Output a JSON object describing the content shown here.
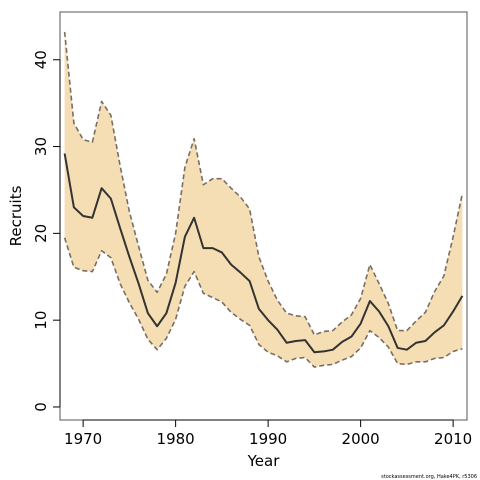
{
  "chart_data": {
    "type": "line",
    "xlabel": "Year",
    "ylabel": "Recruits",
    "xlim": [
      1967.5,
      2011.5
    ],
    "ylim": [
      -1.5,
      45.5
    ],
    "x_ticks": [
      1970,
      1980,
      1990,
      2000,
      2010
    ],
    "y_ticks": [
      0,
      10,
      20,
      30,
      40
    ],
    "grid": false,
    "legend": "none",
    "colors": {
      "band": "#F5DEB3",
      "bound_line": "#7a6e64",
      "median_line": "#333333",
      "frame": "#555555"
    },
    "x": [
      1968,
      1969,
      1970,
      1971,
      1972,
      1973,
      1974,
      1975,
      1976,
      1977,
      1978,
      1979,
      1980,
      1981,
      1982,
      1983,
      1984,
      1985,
      1986,
      1987,
      1988,
      1989,
      1990,
      1991,
      1992,
      1993,
      1994,
      1995,
      1996,
      1997,
      1998,
      1999,
      2000,
      2001,
      2002,
      2003,
      2004,
      2005,
      2006,
      2007,
      2008,
      2009,
      2010,
      2011
    ],
    "series": [
      {
        "role": "upper",
        "values": [
          43.2,
          32.7,
          30.8,
          30.5,
          35.2,
          33.6,
          27.8,
          22.5,
          18.5,
          14.6,
          13.2,
          15.3,
          20.0,
          27.6,
          30.9,
          25.6,
          26.3,
          26.3,
          25.2,
          24.2,
          22.8,
          17.3,
          14.5,
          12.3,
          10.8,
          10.5,
          10.4,
          8.3,
          8.7,
          8.8,
          9.8,
          10.6,
          12.5,
          16.4,
          14.2,
          11.9,
          8.8,
          8.8,
          9.9,
          10.9,
          13.3,
          15.1,
          19.6,
          24.6
        ]
      },
      {
        "role": "median",
        "values": [
          29.2,
          23.0,
          22.0,
          21.8,
          25.2,
          24.0,
          20.6,
          17.3,
          14.2,
          10.8,
          9.3,
          10.8,
          14.3,
          19.6,
          21.8,
          18.3,
          18.3,
          17.8,
          16.4,
          15.5,
          14.5,
          11.3,
          10.0,
          8.9,
          7.4,
          7.6,
          7.7,
          6.3,
          6.4,
          6.6,
          7.5,
          8.1,
          9.6,
          12.2,
          11.0,
          9.3,
          6.8,
          6.6,
          7.4,
          7.6,
          8.6,
          9.4,
          11.0,
          12.8
        ]
      },
      {
        "role": "lower",
        "values": [
          19.5,
          16.1,
          15.7,
          15.6,
          18.0,
          17.2,
          14.2,
          12.0,
          10.1,
          7.8,
          6.6,
          7.9,
          10.1,
          13.9,
          15.6,
          13.1,
          12.6,
          12.1,
          10.9,
          10.1,
          9.4,
          7.2,
          6.3,
          5.9,
          5.2,
          5.6,
          5.7,
          4.6,
          4.8,
          4.9,
          5.4,
          5.8,
          6.8,
          8.8,
          8.0,
          6.9,
          5.0,
          4.9,
          5.2,
          5.2,
          5.6,
          5.7,
          6.4,
          6.7
        ]
      }
    ]
  },
  "caption": "stockassessment.org, Hake4PK, r5306"
}
